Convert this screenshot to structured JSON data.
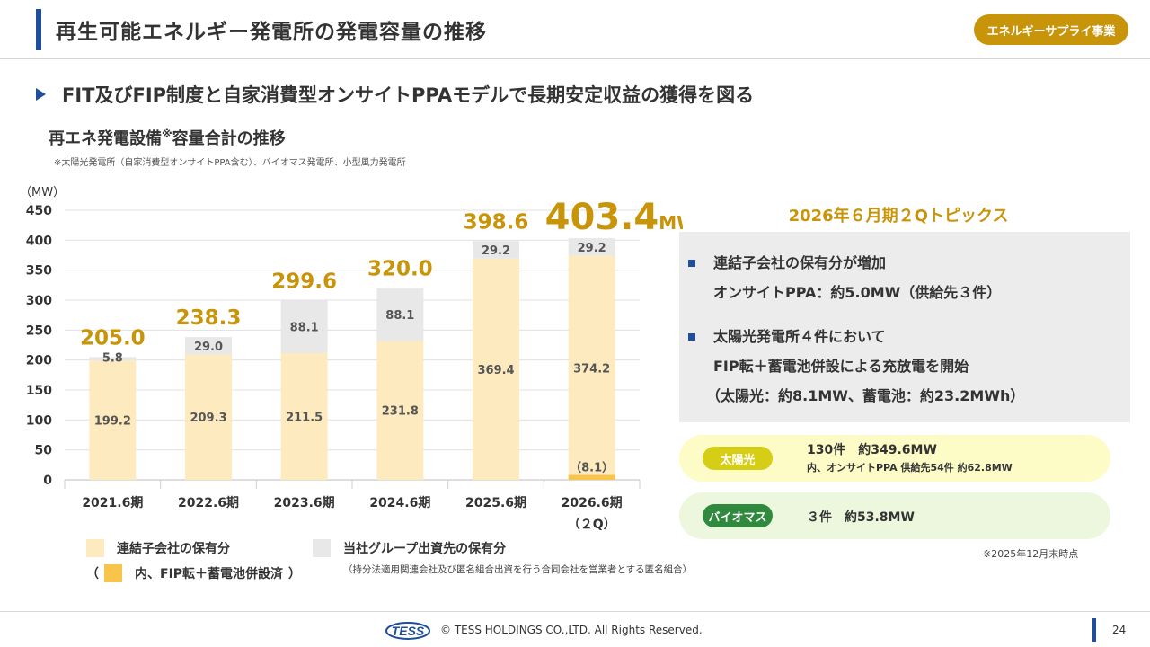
{
  "header": {
    "title": "再生可能エネルギー発電所の発電容量の推移",
    "badge": "エネルギーサプライ事業"
  },
  "subheading": "FIT及びFIP制度と自家消費型オンサイトPPAモデルで長期安定収益の獲得を図る",
  "chart_section": {
    "title": "再エネ発電設備",
    "title_sup": "※",
    "title_rest": "容量合計の推移",
    "note": "※太陽光発電所（自家消費型オンサイトPPA含む）、バイオマス発電所、小型風力発電所"
  },
  "chart_data": {
    "type": "bar",
    "stacked": true,
    "unit_label": "（MW）",
    "ylim": [
      0,
      450
    ],
    "yticks": [
      0,
      50,
      100,
      150,
      200,
      250,
      300,
      350,
      400,
      450
    ],
    "grid": true,
    "categories": [
      "2021.6期",
      "2022.6期",
      "2023.6期",
      "2024.6期",
      "2025.6期",
      "2026.6期"
    ],
    "category_sub": [
      "",
      "",
      "",
      "",
      "",
      "（２Q）"
    ],
    "series": [
      {
        "name": "連結子会社の保有分",
        "values": [
          199.2,
          209.3,
          211.5,
          231.8,
          369.4,
          374.2
        ],
        "color": "#fdebbf"
      },
      {
        "name": "当社グループ出資先の保有分",
        "values": [
          5.8,
          29.0,
          88.1,
          88.1,
          29.2,
          29.2
        ],
        "color": "#e8e8e8"
      }
    ],
    "value_labels_bottom": [
      "199.2",
      "209.3",
      "211.5",
      "231.8",
      "369.4",
      "374.2"
    ],
    "value_labels_top": [
      "5.8",
      "29.0",
      "88.1",
      "88.1",
      "29.2",
      "29.2"
    ],
    "totals": [
      "205.0",
      "238.3",
      "299.6",
      "320.0",
      "398.6",
      "403.4"
    ],
    "total_unit_last": "MW",
    "highlight": {
      "category": "2026.6期",
      "name": "内、FIP転＋蓄電池併設済",
      "value": 8.1,
      "label": "（8.1）",
      "color": "#f9c44b"
    },
    "colors": {
      "total_label": "#c8940a",
      "value_label": "#555555",
      "axis_text": "#333333"
    }
  },
  "legend": {
    "item1": "連結子会社の保有分",
    "item2": "当社グループ出資先の保有分",
    "item3_open": "（",
    "item3": "内、FIP転＋蓄電池併設済",
    "item3_close": "）",
    "item2_sub": "（持分法適用関連会社及び匿名組合出資を行う合同会社を営業者とする匿名組合）"
  },
  "topics": {
    "title": "2026年６月期２Qトピックス",
    "items": [
      {
        "line1": "連結子会社の保有分が増加",
        "line2": "オンサイトPPA：約5.0MW（供給先３件）"
      },
      {
        "line1": "太陽光発電所４件において",
        "line2": "FIP転＋蓄電池併設による充放電を開始",
        "line3": "（太陽光：約8.1MW、蓄電池：約23.2MWh）"
      }
    ]
  },
  "solar": {
    "tag": "太陽光",
    "line1": "130件　約349.6MW",
    "line2": "内、オンサイトPPA 供給先54件 約62.8MW"
  },
  "biomass": {
    "tag": "バイオマス",
    "line1": "３件　約53.8MW"
  },
  "as_of": "※2025年12月末時点",
  "footer": {
    "logo_text": "TESS",
    "copyright": "© TESS HOLDINGS CO.,LTD. All Rights Reserved.",
    "page": "24"
  }
}
